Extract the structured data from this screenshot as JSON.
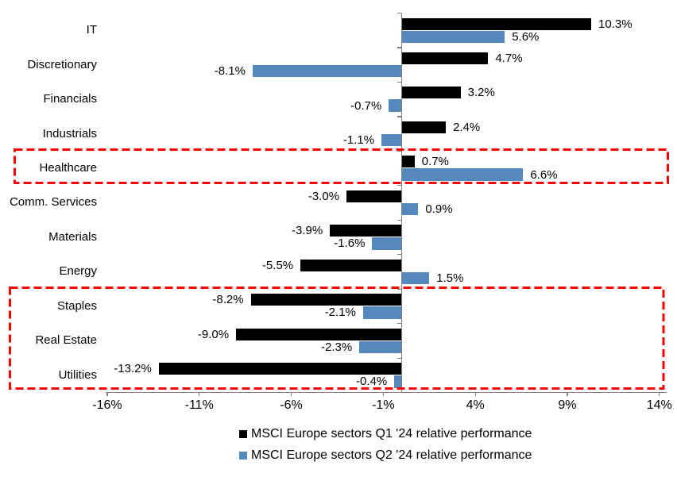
{
  "chart_data": {
    "type": "bar",
    "orientation": "horizontal",
    "title": "",
    "categories": [
      "IT",
      "Discretionary",
      "Financials",
      "Industrials",
      "Healthcare",
      "Comm. Services",
      "Materials",
      "Energy",
      "Staples",
      "Real Estate",
      "Utilities"
    ],
    "series": [
      {
        "name": "MSCI Europe sectors Q1 '24 relative performance",
        "color": "#000000",
        "values": [
          10.3,
          4.7,
          3.2,
          2.4,
          0.7,
          -3.0,
          -3.9,
          -5.5,
          -8.2,
          -9.0,
          -13.2
        ],
        "labels": [
          "10.3%",
          "4.7%",
          "3.2%",
          "2.4%",
          "0.7%",
          "-3.0%",
          "-3.9%",
          "-5.5%",
          "-8.2%",
          "-9.0%",
          "-13.2%"
        ]
      },
      {
        "name": "MSCI Europe sectors Q2 '24 relative performance",
        "color": "#5589BE",
        "values": [
          5.6,
          -8.1,
          -0.7,
          -1.1,
          6.6,
          0.9,
          -1.6,
          1.5,
          -2.1,
          -2.3,
          -0.4
        ],
        "labels": [
          "5.6%",
          "-8.1%",
          "-0.7%",
          "-1.1%",
          "6.6%",
          "0.9%",
          "-1.6%",
          "1.5%",
          "-2.1%",
          "-2.3%",
          "-0.4%"
        ]
      }
    ],
    "x_ticks": [
      -16,
      -11,
      -6,
      -1,
      4,
      9,
      14
    ],
    "x_tick_labels": [
      "-16%",
      "-11%",
      "-6%",
      "-1%",
      "4%",
      "9%",
      "14%"
    ],
    "xlim": [
      -17.1,
      14.6
    ],
    "grid": false,
    "legend_position": "bottom-left",
    "axis_color": "#808080",
    "annotations": [
      {
        "type": "highlight-box",
        "style": "dashed",
        "color": "#FF0000",
        "rows": [
          "Healthcare"
        ],
        "row_start": 4,
        "row_end": 4
      },
      {
        "type": "highlight-box",
        "style": "dashed",
        "color": "#FF0000",
        "rows": [
          "Staples",
          "Real Estate",
          "Utilities"
        ],
        "row_start": 8,
        "row_end": 10
      }
    ]
  }
}
